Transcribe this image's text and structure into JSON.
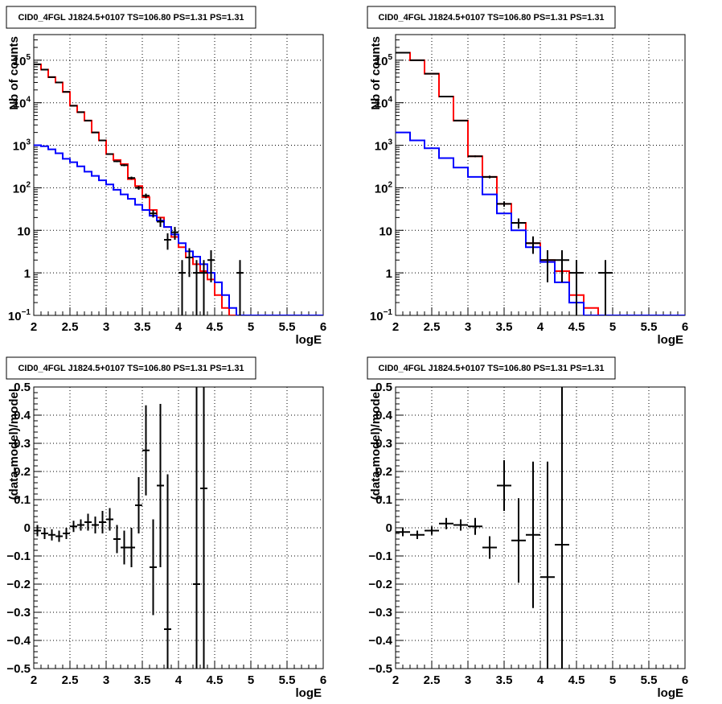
{
  "chart_data": [
    {
      "id": "tl",
      "type": "line",
      "title": "CID0_4FGL J1824.5+0107 TS=106.80 PS=1.31 PS=1.31",
      "xlabel": "logE",
      "ylabel": "Nb of counts",
      "log_y": true,
      "xlim": [
        2,
        6
      ],
      "ylim": [
        0.1,
        400000
      ],
      "grid": true,
      "x_ticks": [
        "2",
        "2.5",
        "3",
        "3.5",
        "4",
        "4.5",
        "5",
        "5.5",
        "6"
      ],
      "y_ticks": [
        {
          "v": 0.1,
          "base": "10",
          "exp": "−1"
        },
        {
          "v": 1,
          "base": "1",
          "exp": ""
        },
        {
          "v": 10,
          "base": "10",
          "exp": ""
        },
        {
          "v": 100,
          "base": "10",
          "exp": "2"
        },
        {
          "v": 1000,
          "base": "10",
          "exp": "3"
        },
        {
          "v": 10000,
          "base": "10",
          "exp": "4"
        },
        {
          "v": 100000,
          "base": "10",
          "exp": "5"
        }
      ],
      "bin_edges": [
        2.0,
        2.1,
        2.2,
        2.3,
        2.4,
        2.5,
        2.6,
        2.7,
        2.8,
        2.9,
        3.0,
        3.1,
        3.2,
        3.3,
        3.4,
        3.5,
        3.6,
        3.7,
        3.8,
        3.9,
        4.0,
        4.1,
        4.2,
        4.3,
        4.4,
        4.5,
        4.6,
        4.7,
        4.8,
        4.9,
        5.0,
        5.1,
        5.2,
        5.3,
        5.4,
        5.5,
        5.6,
        5.7,
        5.8,
        5.9,
        6.0
      ],
      "series": [
        {
          "name": "",
          "color": "#ff0000",
          "kind": "step",
          "values": [
            80000,
            60000,
            40000,
            30000,
            18000,
            8500,
            6000,
            3800,
            2000,
            1300,
            620,
            450,
            360,
            160,
            110,
            60,
            30,
            20,
            12,
            7,
            4,
            2.3,
            1.6,
            1.1,
            0.7,
            0.3,
            0.15,
            0.1,
            0.1,
            0.1,
            0.1,
            0.1,
            0.1,
            0.1,
            0.1,
            0.1,
            0.1,
            0.1,
            0.1,
            0.1
          ]
        },
        {
          "name": "",
          "color": "#0000ff",
          "kind": "step",
          "values": [
            1000,
            950,
            800,
            650,
            480,
            400,
            320,
            240,
            190,
            150,
            120,
            90,
            70,
            55,
            40,
            30,
            22,
            17,
            12,
            8,
            5,
            3.2,
            2.4,
            1.6,
            1.0,
            0.6,
            0.3,
            0.15,
            0.1,
            0.1,
            0.1,
            0.1,
            0.1,
            0.1,
            0.1,
            0.1,
            0.1,
            0.1,
            0.1,
            0.1
          ]
        },
        {
          "name": "",
          "color": "#000000",
          "kind": "points",
          "x": [
            2.05,
            2.15,
            2.25,
            2.35,
            2.45,
            2.55,
            2.65,
            2.75,
            2.85,
            2.95,
            3.05,
            3.15,
            3.25,
            3.35,
            3.45,
            3.55,
            3.65,
            3.75,
            3.85,
            3.95,
            4.05,
            4.15,
            4.25,
            4.35,
            4.45,
            4.85
          ],
          "y": [
            80000,
            60000,
            40000,
            30000,
            18000,
            8500,
            6000,
            3800,
            2000,
            1300,
            620,
            420,
            340,
            170,
            100,
            65,
            25,
            16,
            6,
            9,
            1,
            2.3,
            1,
            1,
            2,
            1
          ],
          "err": [
            5,
            5,
            5,
            5,
            5,
            5,
            5,
            5,
            5,
            5,
            25,
            20,
            18,
            13,
            10,
            8,
            5,
            4,
            2.5,
            3,
            1,
            1.5,
            1,
            1,
            1.4,
            1
          ]
        }
      ]
    },
    {
      "id": "tr",
      "type": "line",
      "title": "CID0_4FGL J1824.5+0107 TS=106.80 PS=1.31 PS=1.31",
      "xlabel": "logE",
      "ylabel": "Nb of counts",
      "log_y": true,
      "xlim": [
        2,
        6
      ],
      "ylim": [
        0.1,
        400000
      ],
      "grid": true,
      "x_ticks": [
        "2",
        "2.5",
        "3",
        "3.5",
        "4",
        "4.5",
        "5",
        "5.5",
        "6"
      ],
      "y_ticks": [
        {
          "v": 0.1,
          "base": "10",
          "exp": "−1"
        },
        {
          "v": 1,
          "base": "1",
          "exp": ""
        },
        {
          "v": 10,
          "base": "10",
          "exp": ""
        },
        {
          "v": 100,
          "base": "10",
          "exp": "2"
        },
        {
          "v": 1000,
          "base": "10",
          "exp": "3"
        },
        {
          "v": 10000,
          "base": "10",
          "exp": "4"
        },
        {
          "v": 100000,
          "base": "10",
          "exp": "5"
        }
      ],
      "bin_edges": [
        2.0,
        2.2,
        2.4,
        2.6,
        2.8,
        3.0,
        3.2,
        3.4,
        3.6,
        3.8,
        4.0,
        4.2,
        4.4,
        4.6,
        4.8,
        5.0,
        5.2,
        5.4,
        5.6,
        5.8,
        6.0
      ],
      "series": [
        {
          "name": "",
          "color": "#ff0000",
          "kind": "step",
          "values": [
            150000,
            100000,
            48000,
            14000,
            3800,
            550,
            180,
            42,
            15,
            5,
            2,
            1.1,
            0.3,
            0.15,
            0.1,
            0.1,
            0.1,
            0.1,
            0.1,
            0.1
          ]
        },
        {
          "name": "",
          "color": "#0000ff",
          "kind": "step",
          "values": [
            2000,
            1300,
            850,
            500,
            300,
            180,
            70,
            25,
            10,
            4,
            1.8,
            0.6,
            0.2,
            0.1,
            0.1,
            0.1,
            0.1,
            0.1,
            0.1,
            0.1
          ]
        },
        {
          "name": "",
          "color": "#000000",
          "kind": "points",
          "x": [
            2.1,
            2.3,
            2.5,
            2.7,
            2.9,
            3.1,
            3.3,
            3.5,
            3.7,
            3.9,
            4.1,
            4.3,
            4.5,
            4.7,
            4.9
          ],
          "y": [
            150000,
            100000,
            48000,
            14000,
            3800,
            550,
            180,
            42,
            15,
            5,
            2,
            2,
            1,
            0.1,
            1
          ],
          "err": [
            5,
            5,
            5,
            5,
            5,
            25,
            13,
            6,
            4,
            2.2,
            1.4,
            1.4,
            1,
            0,
            1
          ]
        }
      ]
    },
    {
      "id": "bl",
      "type": "scatter",
      "title": "CID0_4FGL J1824.5+0107 TS=106.80 PS=1.31 PS=1.31",
      "xlabel": "logE",
      "ylabel": "(data-model)/model",
      "log_y": false,
      "xlim": [
        2,
        6
      ],
      "ylim": [
        -0.5,
        0.5
      ],
      "grid": true,
      "x_ticks": [
        "2",
        "2.5",
        "3",
        "3.5",
        "4",
        "4.5",
        "5",
        "5.5",
        "6"
      ],
      "y_ticks_text": [
        "−0.5",
        "−0.4",
        "−0.3",
        "−0.2",
        "−0.1",
        "0",
        "0.1",
        "0.2",
        "0.3",
        "0.4",
        "0.5"
      ],
      "points": {
        "x": [
          2.05,
          2.15,
          2.25,
          2.35,
          2.45,
          2.55,
          2.65,
          2.75,
          2.85,
          2.95,
          3.05,
          3.15,
          3.25,
          3.35,
          3.45,
          3.55,
          3.65,
          3.75,
          3.85,
          4.25,
          4.35
        ],
        "y": [
          -0.01,
          -0.02,
          -0.025,
          -0.03,
          -0.02,
          0.005,
          0.01,
          0.02,
          0.01,
          0.02,
          0.03,
          -0.04,
          -0.07,
          -0.07,
          0.08,
          0.275,
          -0.14,
          0.15,
          -0.36,
          -0.2,
          0.14
        ],
        "err": [
          0.02,
          0.02,
          0.02,
          0.02,
          0.02,
          0.02,
          0.02,
          0.03,
          0.03,
          0.04,
          0.04,
          0.05,
          0.06,
          0.07,
          0.1,
          0.16,
          0.17,
          0.29,
          0.55,
          1.0,
          1.0
        ]
      }
    },
    {
      "id": "br",
      "type": "scatter",
      "title": "CID0_4FGL J1824.5+0107 TS=106.80 PS=1.31 PS=1.31",
      "xlabel": "logE",
      "ylabel": "(data-model)/model",
      "log_y": false,
      "xlim": [
        2,
        6
      ],
      "ylim": [
        -0.5,
        0.5
      ],
      "grid": true,
      "x_ticks": [
        "2",
        "2.5",
        "3",
        "3.5",
        "4",
        "4.5",
        "5",
        "5.5",
        "6"
      ],
      "y_ticks_text": [
        "−0.5",
        "−0.4",
        "−0.3",
        "−0.2",
        "−0.1",
        "0",
        "0.1",
        "0.2",
        "0.3",
        "0.4",
        "0.5"
      ],
      "points": {
        "x": [
          2.1,
          2.3,
          2.5,
          2.7,
          2.9,
          3.1,
          3.3,
          3.5,
          3.7,
          3.9,
          4.1,
          4.3
        ],
        "y": [
          -0.015,
          -0.025,
          -0.01,
          0.015,
          0.01,
          0.005,
          -0.07,
          0.15,
          -0.045,
          -0.025,
          -0.175,
          -0.06
        ],
        "err": [
          0.015,
          0.015,
          0.015,
          0.02,
          0.02,
          0.03,
          0.04,
          0.09,
          0.15,
          0.26,
          0.41,
          1.0
        ]
      }
    }
  ]
}
